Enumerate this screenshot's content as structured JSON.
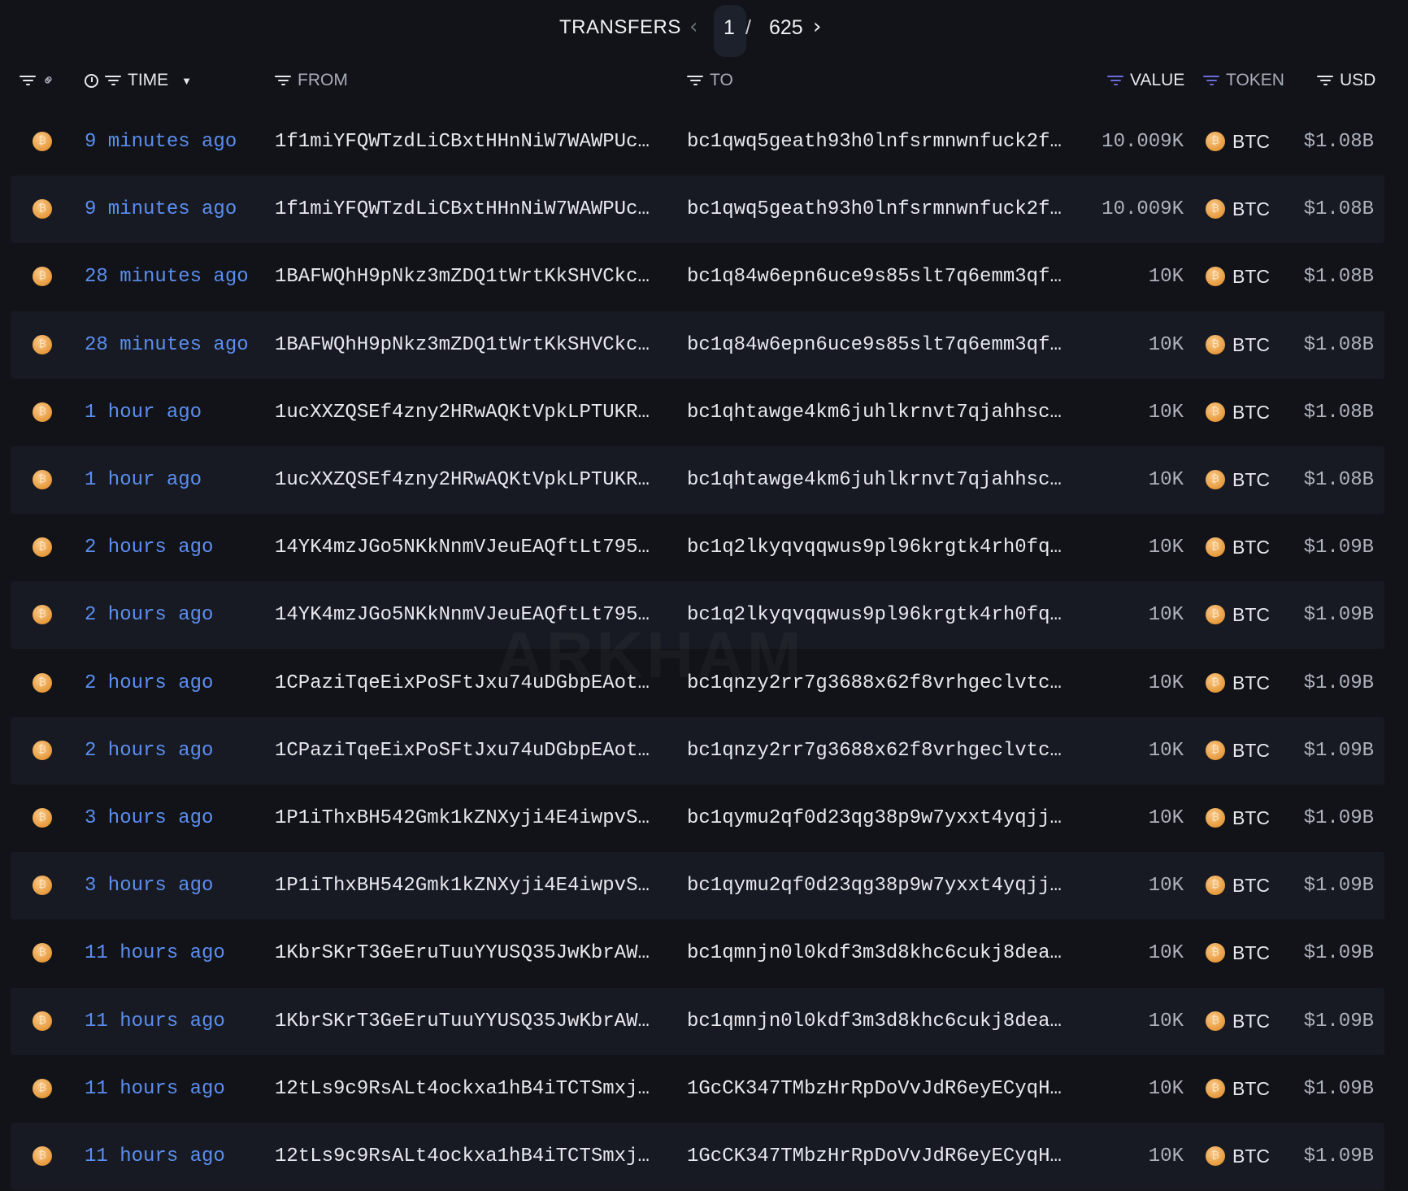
{
  "header": {
    "title": "TRANSFERS",
    "page_current": "1",
    "page_separator": "/",
    "page_total": "625",
    "prev_icon": "chevron-left-icon",
    "next_icon": "chevron-right-icon"
  },
  "columns": {
    "time": "TIME",
    "from": "FROM",
    "to": "TO",
    "value": "VALUE",
    "token": "TOKEN",
    "usd": "USD"
  },
  "colors": {
    "background": "#111318",
    "time_link": "#5b8ef0",
    "filter_active": "#6c6cd8",
    "btc": "#e79a3c"
  },
  "watermark": "ARKHAM",
  "rows": [
    {
      "time": "9 minutes ago",
      "from": "1f1miYFQWTzdLiCBxtHHnNiW7WAWPUc…",
      "to": "bc1qwq5geath93h0lnfsrmnwnfuck2f…",
      "value": "10.009K",
      "token": "BTC",
      "usd": "$1.08B"
    },
    {
      "time": "9 minutes ago",
      "from": "1f1miYFQWTzdLiCBxtHHnNiW7WAWPUc…",
      "to": "bc1qwq5geath93h0lnfsrmnwnfuck2f…",
      "value": "10.009K",
      "token": "BTC",
      "usd": "$1.08B"
    },
    {
      "time": "28 minutes ago",
      "from": "1BAFWQhH9pNkz3mZDQ1tWrtKkSHVCkc…",
      "to": "bc1q84w6epn6uce9s85slt7q6emm3qf…",
      "value": "10K",
      "token": "BTC",
      "usd": "$1.08B"
    },
    {
      "time": "28 minutes ago",
      "from": "1BAFWQhH9pNkz3mZDQ1tWrtKkSHVCkc…",
      "to": "bc1q84w6epn6uce9s85slt7q6emm3qf…",
      "value": "10K",
      "token": "BTC",
      "usd": "$1.08B"
    },
    {
      "time": "1 hour ago",
      "from": "1ucXXZQSEf4zny2HRwAQKtVpkLPTUKR…",
      "to": "bc1qhtawge4km6juhlkrnvt7qjahhsc…",
      "value": "10K",
      "token": "BTC",
      "usd": "$1.08B"
    },
    {
      "time": "1 hour ago",
      "from": "1ucXXZQSEf4zny2HRwAQKtVpkLPTUKR…",
      "to": "bc1qhtawge4km6juhlkrnvt7qjahhsc…",
      "value": "10K",
      "token": "BTC",
      "usd": "$1.08B"
    },
    {
      "time": "2 hours ago",
      "from": "14YK4mzJGo5NKkNnmVJeuEAQftLt795…",
      "to": "bc1q2lkyqvqqwus9pl96krgtk4rh0fq…",
      "value": "10K",
      "token": "BTC",
      "usd": "$1.09B"
    },
    {
      "time": "2 hours ago",
      "from": "14YK4mzJGo5NKkNnmVJeuEAQftLt795…",
      "to": "bc1q2lkyqvqqwus9pl96krgtk4rh0fq…",
      "value": "10K",
      "token": "BTC",
      "usd": "$1.09B"
    },
    {
      "time": "2 hours ago",
      "from": "1CPaziTqeEixPoSFtJxu74uDGbpEAot…",
      "to": "bc1qnzy2rr7g3688x62f8vrhgeclvtc…",
      "value": "10K",
      "token": "BTC",
      "usd": "$1.09B"
    },
    {
      "time": "2 hours ago",
      "from": "1CPaziTqeEixPoSFtJxu74uDGbpEAot…",
      "to": "bc1qnzy2rr7g3688x62f8vrhgeclvtc…",
      "value": "10K",
      "token": "BTC",
      "usd": "$1.09B"
    },
    {
      "time": "3 hours ago",
      "from": "1P1iThxBH542Gmk1kZNXyji4E4iwpvS…",
      "to": "bc1qymu2qf0d23qg38p9w7yxxt4yqjj…",
      "value": "10K",
      "token": "BTC",
      "usd": "$1.09B"
    },
    {
      "time": "3 hours ago",
      "from": "1P1iThxBH542Gmk1kZNXyji4E4iwpvS…",
      "to": "bc1qymu2qf0d23qg38p9w7yxxt4yqjj…",
      "value": "10K",
      "token": "BTC",
      "usd": "$1.09B"
    },
    {
      "time": "11 hours ago",
      "from": "1KbrSKrT3GeEruTuuYYUSQ35JwKbrAW…",
      "to": "bc1qmnjn0l0kdf3m3d8khc6cukj8dea…",
      "value": "10K",
      "token": "BTC",
      "usd": "$1.09B"
    },
    {
      "time": "11 hours ago",
      "from": "1KbrSKrT3GeEruTuuYYUSQ35JwKbrAW…",
      "to": "bc1qmnjn0l0kdf3m3d8khc6cukj8dea…",
      "value": "10K",
      "token": "BTC",
      "usd": "$1.09B"
    },
    {
      "time": "11 hours ago",
      "from": "12tLs9c9RsALt4ockxa1hB4iTCTSmxj…",
      "to": "1GcCK347TMbzHrRpDoVvJdR6eyECyqH…",
      "value": "10K",
      "token": "BTC",
      "usd": "$1.09B"
    },
    {
      "time": "11 hours ago",
      "from": "12tLs9c9RsALt4ockxa1hB4iTCTSmxj…",
      "to": "1GcCK347TMbzHrRpDoVvJdR6eyECyqH…",
      "value": "10K",
      "token": "BTC",
      "usd": "$1.09B"
    }
  ]
}
